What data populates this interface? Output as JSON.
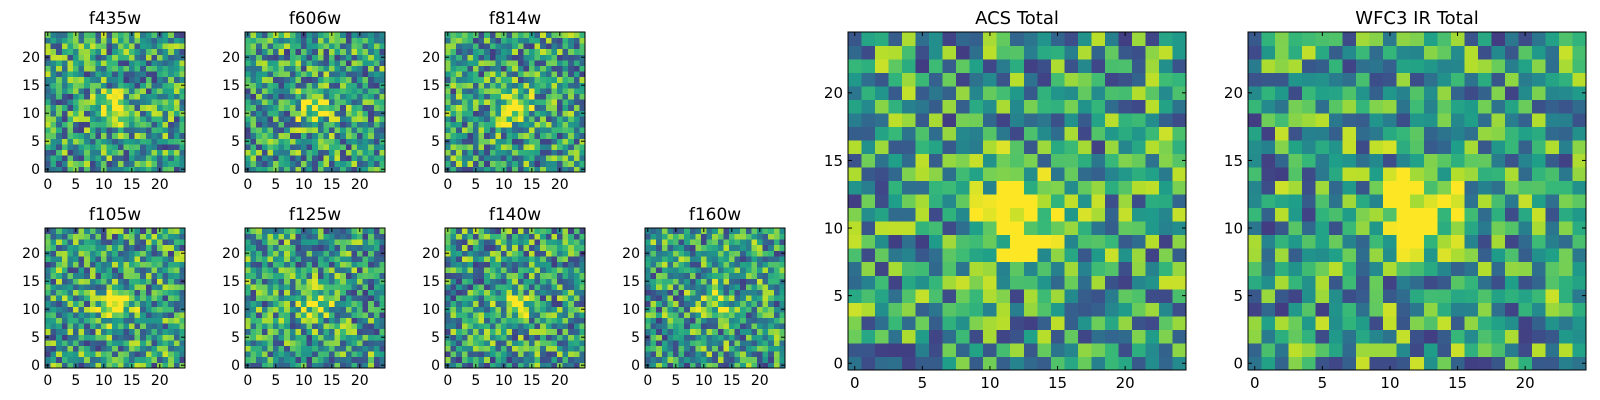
{
  "figure": {
    "colormap": "viridis",
    "axis_color": "#000000",
    "background": "#ffffff"
  },
  "chart_data": [
    {
      "id": "f435w",
      "type": "heatmap",
      "title": "f435w",
      "grid": false,
      "xlim": [
        0,
        25
      ],
      "ylim": [
        0,
        25
      ],
      "xticks": [
        0,
        5,
        10,
        15,
        20
      ],
      "yticks": [
        0,
        5,
        10,
        15,
        20
      ],
      "center_peak": 0.45,
      "noise_seed": 11
    },
    {
      "id": "f606w",
      "type": "heatmap",
      "title": "f606w",
      "grid": false,
      "xlim": [
        0,
        25
      ],
      "ylim": [
        0,
        25
      ],
      "xticks": [
        0,
        5,
        10,
        15,
        20
      ],
      "yticks": [
        0,
        5,
        10,
        15,
        20
      ],
      "center_peak": 0.45,
      "noise_seed": 23
    },
    {
      "id": "f814w",
      "type": "heatmap",
      "title": "f814w",
      "grid": false,
      "xlim": [
        0,
        25
      ],
      "ylim": [
        0,
        25
      ],
      "xticks": [
        0,
        5,
        10,
        15,
        20
      ],
      "yticks": [
        0,
        5,
        10,
        15,
        20
      ],
      "center_peak": 0.5,
      "noise_seed": 37
    },
    {
      "id": "f105w",
      "type": "heatmap",
      "title": "f105w",
      "grid": false,
      "xlim": [
        0,
        25
      ],
      "ylim": [
        0,
        25
      ],
      "xticks": [
        0,
        5,
        10,
        15,
        20
      ],
      "yticks": [
        0,
        5,
        10,
        15,
        20
      ],
      "center_peak": 0.6,
      "noise_seed": 41
    },
    {
      "id": "f125w",
      "type": "heatmap",
      "title": "f125w",
      "grid": false,
      "xlim": [
        0,
        25
      ],
      "ylim": [
        0,
        25
      ],
      "xticks": [
        0,
        5,
        10,
        15,
        20
      ],
      "yticks": [
        0,
        5,
        10,
        15,
        20
      ],
      "center_peak": 0.4,
      "noise_seed": 53
    },
    {
      "id": "f140w",
      "type": "heatmap",
      "title": "f140w",
      "grid": false,
      "xlim": [
        0,
        25
      ],
      "ylim": [
        0,
        25
      ],
      "xticks": [
        0,
        5,
        10,
        15,
        20
      ],
      "yticks": [
        0,
        5,
        10,
        15,
        20
      ],
      "center_peak": 0.3,
      "noise_seed": 67
    },
    {
      "id": "f160w",
      "type": "heatmap",
      "title": "f160w",
      "grid": false,
      "xlim": [
        0,
        25
      ],
      "ylim": [
        0,
        25
      ],
      "xticks": [
        0,
        5,
        10,
        15,
        20
      ],
      "yticks": [
        0,
        5,
        10,
        15,
        20
      ],
      "center_peak": 0.3,
      "noise_seed": 79
    },
    {
      "id": "acs-total",
      "type": "heatmap",
      "title": "ACS Total",
      "grid": false,
      "xlim": [
        0,
        25
      ],
      "ylim": [
        0,
        25
      ],
      "xticks": [
        0,
        5,
        10,
        15,
        20
      ],
      "yticks": [
        0,
        5,
        10,
        15,
        20
      ],
      "center_peak": 0.65,
      "noise_seed": 97
    },
    {
      "id": "wfc3-ir-total",
      "type": "heatmap",
      "title": "WFC3 IR Total",
      "grid": false,
      "xlim": [
        0,
        25
      ],
      "ylim": [
        0,
        25
      ],
      "xticks": [
        0,
        5,
        10,
        15,
        20
      ],
      "yticks": [
        0,
        5,
        10,
        15,
        20
      ],
      "center_peak": 0.7,
      "noise_seed": 113
    }
  ]
}
